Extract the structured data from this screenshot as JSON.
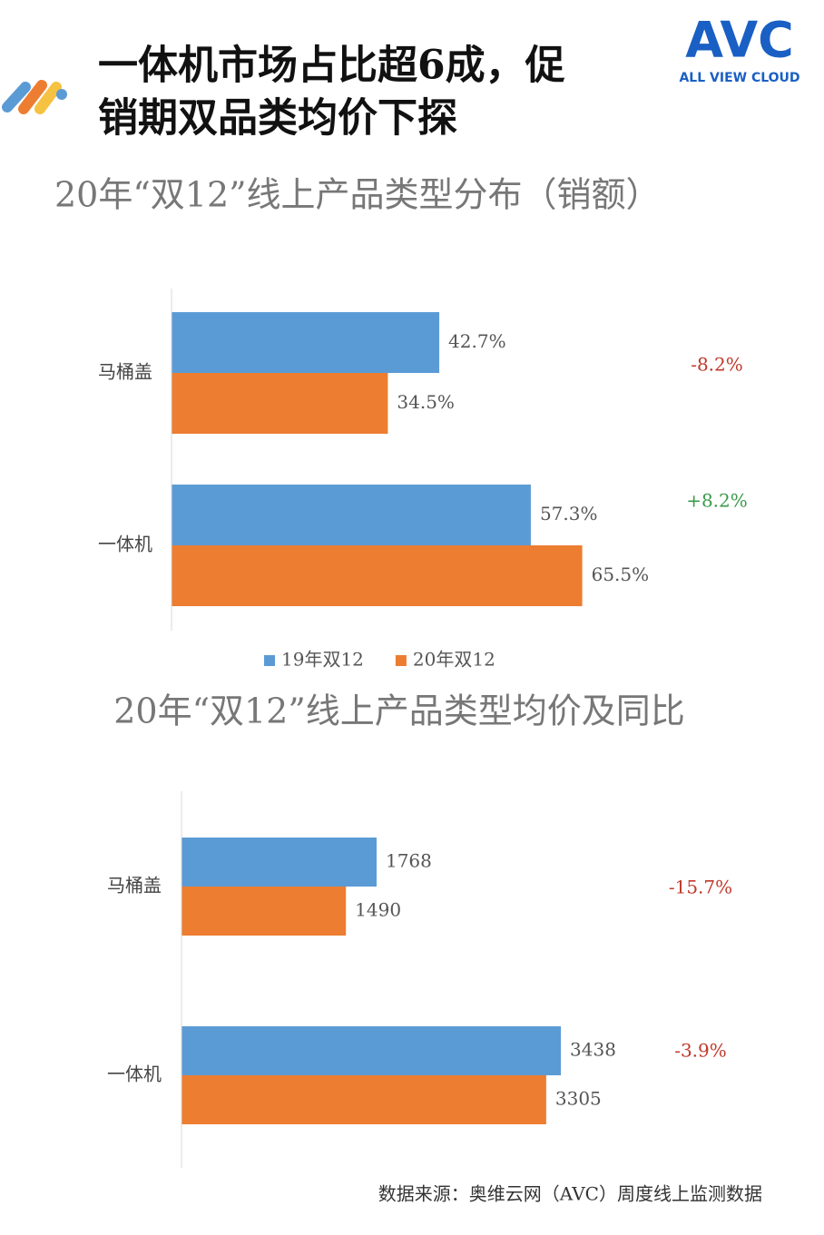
{
  "header": {
    "title_lines": [
      "一体机市场占比超6成，促",
      "销期双品类均价下探"
    ],
    "logo": "AVC",
    "logo_sub": "ALL VIEW CLOUD"
  },
  "chart_data": [
    {
      "type": "hbar",
      "title": "20年“双12”线上产品类型分布（销额）",
      "categories": [
        "马桶盖",
        "一体机"
      ],
      "series": [
        {
          "name": "19年双12",
          "color": "#5b9bd5",
          "values": [
            42.7,
            57.3
          ],
          "value_labels": [
            "42.7%",
            "57.3%"
          ]
        },
        {
          "name": "20年双12",
          "color": "#ed7d31",
          "values": [
            34.5,
            65.5
          ],
          "value_labels": [
            "34.5%",
            "65.5%"
          ]
        }
      ],
      "xlim": [
        0,
        100
      ],
      "annotations": [
        "-8.2%",
        "+8.2%"
      ],
      "annotation_colors": [
        "#c0392b",
        "#3a9a4a"
      ],
      "legend": true
    },
    {
      "type": "hbar",
      "title": "20年“双12”线上产品类型均价及同比",
      "categories": [
        "马桶盖",
        "一体机"
      ],
      "series": [
        {
          "name": "19年双12",
          "color": "#5b9bd5",
          "values": [
            1768,
            3438
          ]
        },
        {
          "name": "20年双12",
          "color": "#ed7d31",
          "values": [
            1490,
            3305
          ]
        }
      ],
      "xlim": [
        0,
        5000
      ],
      "annotations": [
        "-15.7%",
        "-3.9%"
      ],
      "annotation_colors": [
        "#c0392b",
        "#c0392b"
      ],
      "legend": false
    }
  ],
  "source": "数据来源：奥维云网（AVC）周度线上监测数据"
}
